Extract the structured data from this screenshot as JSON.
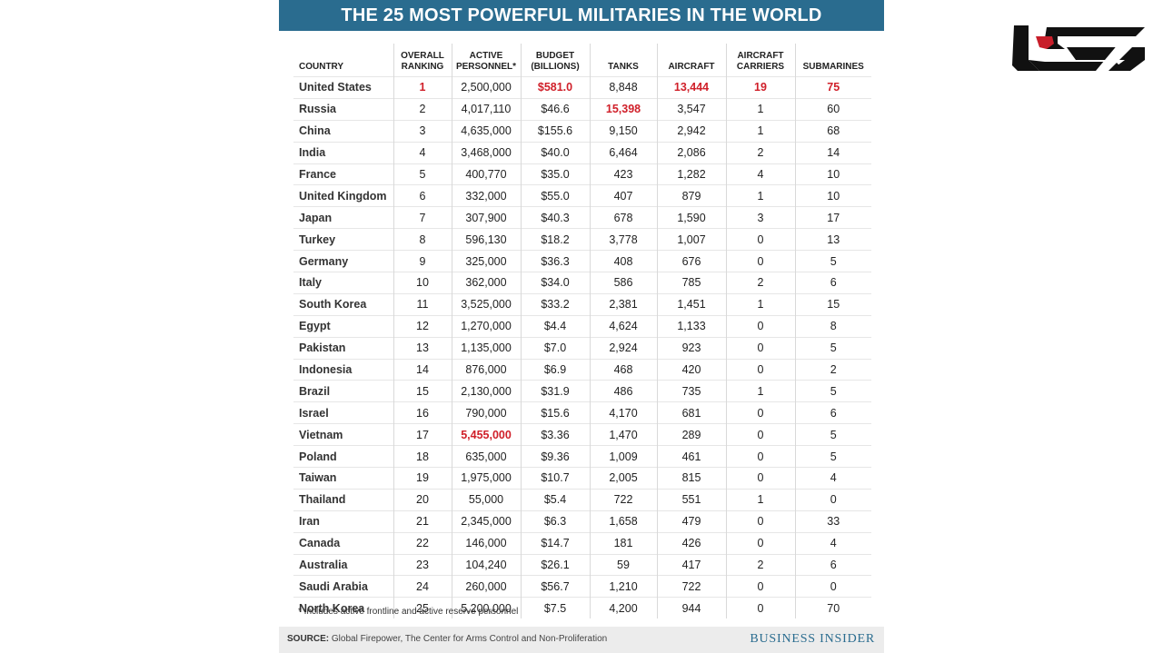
{
  "title": "THE 25 MOST POWERFUL MILITARIES IN THE WORLD",
  "columns": [
    "COUNTRY",
    "OVERALL RANKING",
    "ACTIVE PERSONNEL*",
    "BUDGET (BILLIONS)",
    "TANKS",
    "AIRCRAFT",
    "AIRCRAFT CARRIERS",
    "SUBMARINES"
  ],
  "rows": [
    [
      "United States",
      "1",
      "2,500,000",
      "$581.0",
      "8,848",
      "13,444",
      "19",
      "75"
    ],
    [
      "Russia",
      "2",
      "4,017,110",
      "$46.6",
      "15,398",
      "3,547",
      "1",
      "60"
    ],
    [
      "China",
      "3",
      "4,635,000",
      "$155.6",
      "9,150",
      "2,942",
      "1",
      "68"
    ],
    [
      "India",
      "4",
      "3,468,000",
      "$40.0",
      "6,464",
      "2,086",
      "2",
      "14"
    ],
    [
      "France",
      "5",
      "400,770",
      "$35.0",
      "423",
      "1,282",
      "4",
      "10"
    ],
    [
      "United Kingdom",
      "6",
      "332,000",
      "$55.0",
      "407",
      "879",
      "1",
      "10"
    ],
    [
      "Japan",
      "7",
      "307,900",
      "$40.3",
      "678",
      "1,590",
      "3",
      "17"
    ],
    [
      "Turkey",
      "8",
      "596,130",
      "$18.2",
      "3,778",
      "1,007",
      "0",
      "13"
    ],
    [
      "Germany",
      "9",
      "325,000",
      "$36.3",
      "408",
      "676",
      "0",
      "5"
    ],
    [
      "Italy",
      "10",
      "362,000",
      "$34.0",
      "586",
      "785",
      "2",
      "6"
    ],
    [
      "South Korea",
      "11",
      "3,525,000",
      "$33.2",
      "2,381",
      "1,451",
      "1",
      "15"
    ],
    [
      "Egypt",
      "12",
      "1,270,000",
      "$4.4",
      "4,624",
      "1,133",
      "0",
      "8"
    ],
    [
      "Pakistan",
      "13",
      "1,135,000",
      "$7.0",
      "2,924",
      "923",
      "0",
      "5"
    ],
    [
      "Indonesia",
      "14",
      "876,000",
      "$6.9",
      "468",
      "420",
      "0",
      "2"
    ],
    [
      "Brazil",
      "15",
      "2,130,000",
      "$31.9",
      "486",
      "735",
      "1",
      "5"
    ],
    [
      "Israel",
      "16",
      "790,000",
      "$15.6",
      "4,170",
      "681",
      "0",
      "6"
    ],
    [
      "Vietnam",
      "17",
      "5,455,000",
      "$3.36",
      "1,470",
      "289",
      "0",
      "5"
    ],
    [
      "Poland",
      "18",
      "635,000",
      "$9.36",
      "1,009",
      "461",
      "0",
      "5"
    ],
    [
      "Taiwan",
      "19",
      "1,975,000",
      "$10.7",
      "2,005",
      "815",
      "0",
      "4"
    ],
    [
      "Thailand",
      "20",
      "55,000",
      "$5.4",
      "722",
      "551",
      "1",
      "0"
    ],
    [
      "Iran",
      "21",
      "2,345,000",
      "$6.3",
      "1,658",
      "479",
      "0",
      "33"
    ],
    [
      "Canada",
      "22",
      "146,000",
      "$14.7",
      "181",
      "426",
      "0",
      "4"
    ],
    [
      "Australia",
      "23",
      "104,240",
      "$26.1",
      "59",
      "417",
      "2",
      "6"
    ],
    [
      "Saudi Arabia",
      "24",
      "260,000",
      "$56.7",
      "1,210",
      "722",
      "0",
      "0"
    ],
    [
      "North Korea",
      "25",
      "5,200,000",
      "$7.5",
      "4,200",
      "944",
      "0",
      "70"
    ]
  ],
  "highlight_color": "#d0202a",
  "highlights": [
    [
      0,
      1
    ],
    [
      0,
      3
    ],
    [
      0,
      5
    ],
    [
      0,
      6
    ],
    [
      0,
      7
    ],
    [
      1,
      4
    ],
    [
      16,
      2
    ]
  ],
  "footnote": "* Includes active frontline and active reserve personnel",
  "source_label": "SOURCE:",
  "source_text": " Global Firepower, The Center for Arms Control and Non-Proliferation",
  "brand": "BUSINESS INSIDER",
  "logo_icon": "site-logo-icon"
}
